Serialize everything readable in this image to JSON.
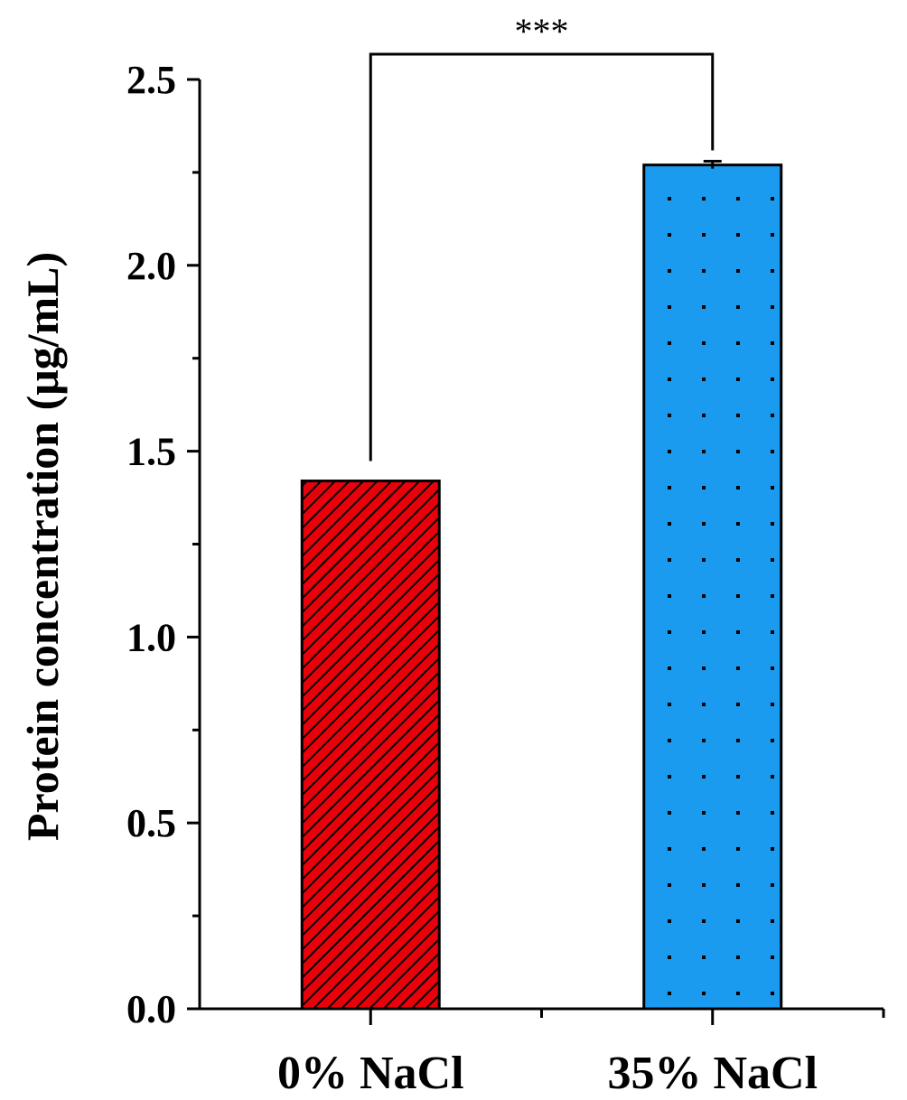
{
  "chart_data": {
    "type": "bar",
    "title": "",
    "xlabel": "",
    "ylabel": "Protein concentration (μg/mL)",
    "ylim": [
      0,
      2.5
    ],
    "yticks": [
      "0.0",
      "0.5",
      "1.0",
      "1.5",
      "2.0",
      "2.5"
    ],
    "categories": [
      "0% NaCl",
      "35% NaCl"
    ],
    "values": [
      1.42,
      2.27
    ],
    "errors": [
      0.0,
      0.01
    ],
    "bar_colors": [
      "#e8000b",
      "#1a9bef"
    ],
    "bar_patterns": [
      "diagonal-hatch",
      "dots"
    ],
    "grid": false,
    "significance": {
      "between": [
        0,
        1
      ],
      "label": "***"
    }
  }
}
